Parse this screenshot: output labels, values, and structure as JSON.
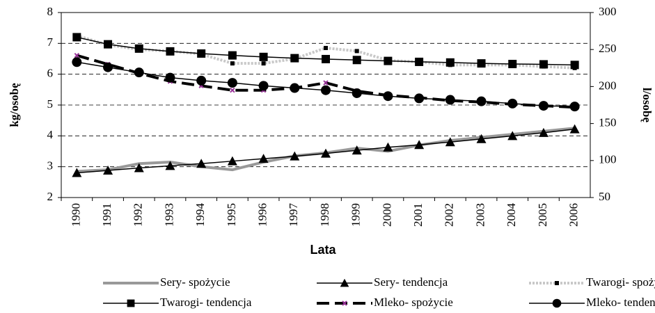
{
  "chart_data": {
    "type": "line",
    "x_label": "Lata",
    "y_label": "kg/osobę",
    "y2_label": "l/osobę",
    "categories": [
      "1990",
      "1991",
      "1992",
      "1993",
      "1994",
      "1995",
      "1996",
      "1997",
      "1998",
      "1999",
      "2000",
      "2001",
      "2002",
      "2003",
      "2004",
      "2005",
      "2006"
    ],
    "ylim": [
      2,
      8
    ],
    "yticks": [
      2,
      3,
      4,
      5,
      6,
      7,
      8
    ],
    "y2lim": [
      50,
      300
    ],
    "y2ticks": [
      50,
      100,
      150,
      200,
      250,
      300
    ],
    "grid": true,
    "series": [
      {
        "name": "Sery- spożycie",
        "color": "#999999",
        "marker": "none",
        "line_style": "solid",
        "values": [
          2.85,
          2.9,
          3.1,
          3.15,
          3.0,
          2.9,
          3.15,
          3.35,
          3.45,
          3.6,
          3.5,
          3.7,
          3.85,
          3.95,
          4.05,
          4.15,
          4.25
        ]
      },
      {
        "name": "Sery- tendencja",
        "color": "#000000",
        "marker": "triangle",
        "line_style": "solid",
        "values": [
          2.8,
          2.88,
          2.96,
          3.03,
          3.1,
          3.18,
          3.26,
          3.34,
          3.43,
          3.53,
          3.63,
          3.71,
          3.8,
          3.9,
          4.0,
          4.1,
          4.22
        ]
      },
      {
        "name": "Twarogi- spożycie",
        "color": "#c8c8c8",
        "marker": "small-square",
        "line_style": "dotted",
        "values": [
          7.25,
          6.95,
          6.8,
          6.75,
          6.65,
          6.35,
          6.35,
          6.5,
          6.85,
          6.75,
          6.45,
          6.4,
          6.3,
          6.3,
          6.3,
          6.25,
          6.2
        ]
      },
      {
        "name": "Twarogi- tendencja",
        "color": "#000000",
        "marker": "square",
        "line_style": "solid",
        "values": [
          7.2,
          6.97,
          6.83,
          6.74,
          6.67,
          6.61,
          6.56,
          6.52,
          6.49,
          6.46,
          6.43,
          6.4,
          6.38,
          6.35,
          6.33,
          6.32,
          6.3
        ]
      },
      {
        "name": "Mleko- spożycie",
        "color": "#000000",
        "marker_color": "#993399",
        "marker": "x",
        "line_style": "dashed",
        "axis": "y2",
        "values": [
          242,
          230,
          218,
          207,
          201,
          195,
          195,
          198,
          205,
          194,
          188,
          185,
          181,
          179,
          176,
          174,
          172
        ]
      },
      {
        "name": "Mleko- tendencja",
        "color": "#000000",
        "marker": "circle",
        "line_style": "solid",
        "axis": "y2",
        "values": [
          233,
          226,
          219,
          212,
          208,
          205,
          201,
          198,
          195,
          191,
          187,
          184,
          182,
          180,
          177,
          174,
          173
        ]
      }
    ]
  }
}
